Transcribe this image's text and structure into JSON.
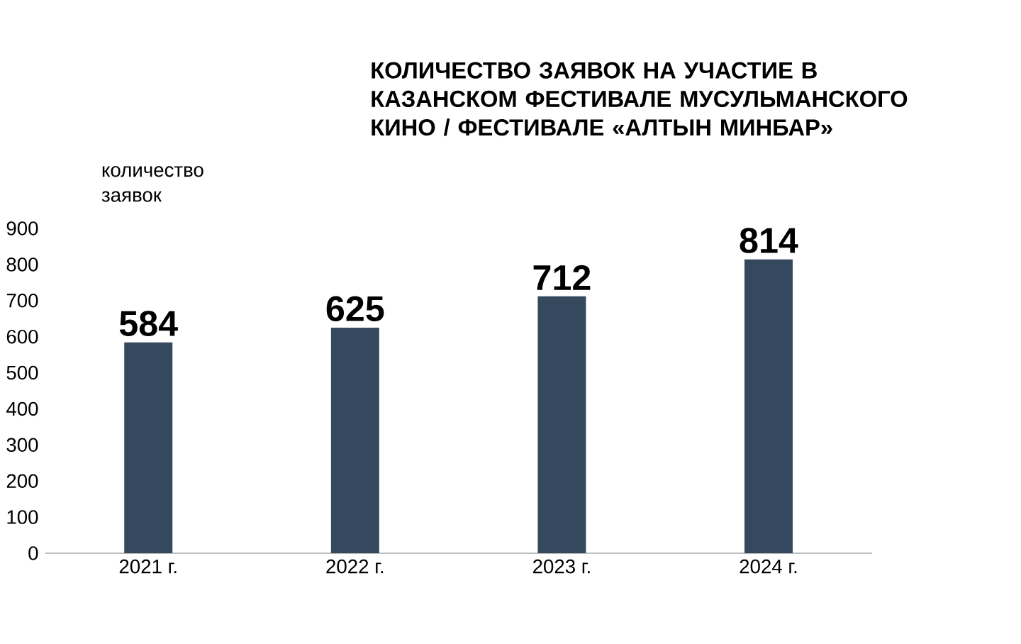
{
  "chart_data": {
    "type": "bar",
    "title": "КОЛИЧЕСТВО ЗАЯВОК НА УЧАСТИЕ В КАЗАНСКОМ ФЕСТИВАЛЕ МУСУЛЬМАНСКОГО КИНО / ФЕСТИВАЛЕ «АЛТЫН МИНБАР»",
    "ylabel": "количество заявок",
    "categories": [
      "2021 г.",
      "2022 г.",
      "2023 г.",
      "2024 г."
    ],
    "values": [
      584,
      625,
      712,
      814
    ],
    "color": "#34495e",
    "ylim": [
      0,
      900
    ],
    "yticks": [
      0,
      100,
      200,
      300,
      400,
      500,
      600,
      700,
      800,
      900
    ],
    "data_labels": true
  }
}
